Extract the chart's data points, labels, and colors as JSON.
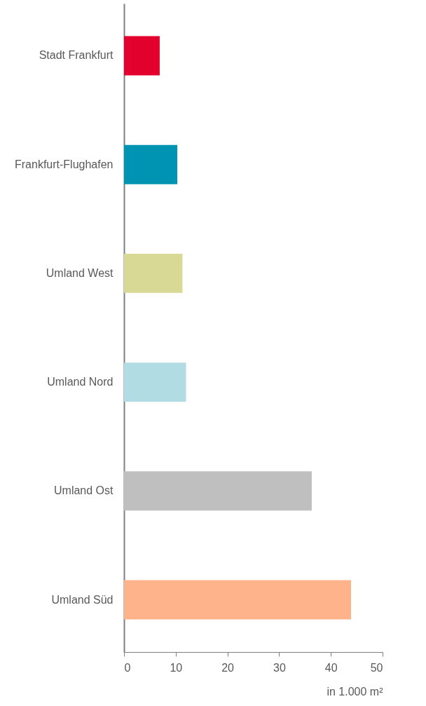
{
  "chart_data": {
    "type": "bar",
    "orientation": "horizontal",
    "xlabel": "in 1.000 m²",
    "categories": [
      "Stadt Frankfurt",
      "Frankfurt-Flughafen",
      "Umland West",
      "Umland Nord",
      "Umland Ost",
      "Umland Süd"
    ],
    "values": [
      6.9,
      10.3,
      11.3,
      12.0,
      36.3,
      43.9
    ],
    "colors": [
      "#e2002d",
      "#0093b2",
      "#d8d995",
      "#b2dce3",
      "#bfbfbf",
      "#ffb38a"
    ],
    "xlim": [
      0,
      50
    ],
    "xticks": [
      0,
      10,
      20,
      30,
      40,
      50
    ],
    "grid": false
  }
}
